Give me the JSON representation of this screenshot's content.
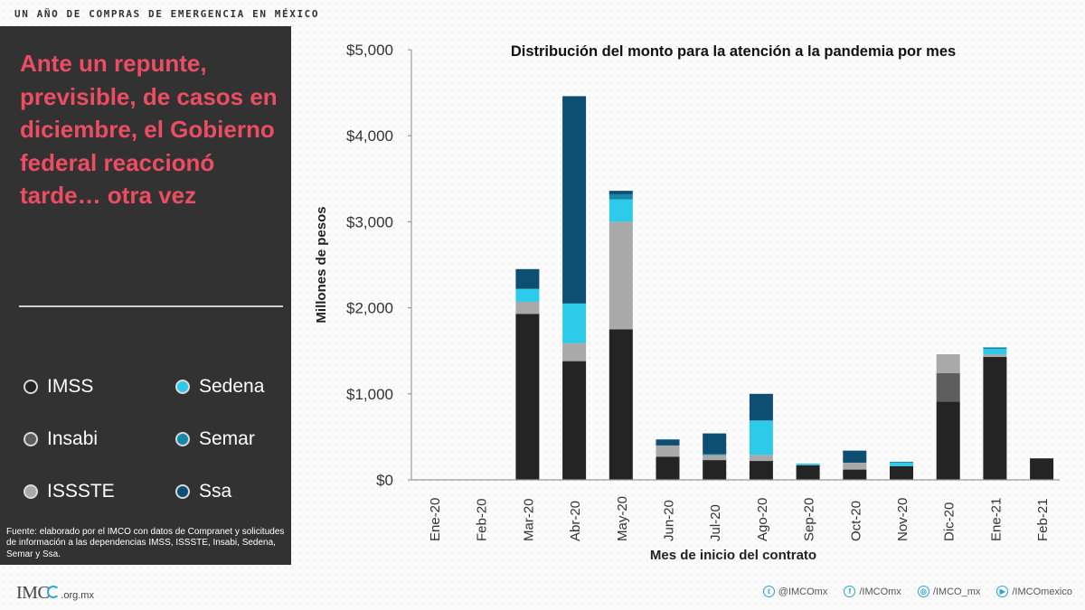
{
  "header": {
    "kicker": "UN AÑO DE COMPRAS DE EMERGENCIA EN MÉXICO"
  },
  "panel": {
    "headline": "Ante un repunte, previsible, de casos en diciembre, el Gobierno federal reaccionó tarde… otra vez",
    "headline_color": "#ec4d63",
    "legend": [
      {
        "label": "IMSS",
        "color": "#242424"
      },
      {
        "label": "Sedena",
        "color": "#2dcbea"
      },
      {
        "label": "Insabi",
        "color": "#5e5e5e"
      },
      {
        "label": "Semar",
        "color": "#1587a9"
      },
      {
        "label": "ISSSTE",
        "color": "#a9a9a9"
      },
      {
        "label": "Ssa",
        "color": "#0d4e72"
      }
    ],
    "source": "Fuente: elaborado por el IMCO con datos de Compranet y solicitudes de información a las dependencias IMSS, ISSSTE, Insabi, Sedena, Semar y Ssa."
  },
  "footer": {
    "logo_text": "IMC",
    "logo_domain": ".org.mx",
    "social": [
      {
        "icon": "twitter-icon",
        "glyph": "t",
        "label": "@IMCOmx"
      },
      {
        "icon": "facebook-icon",
        "glyph": "f",
        "label": "/IMCOmx"
      },
      {
        "icon": "instagram-icon",
        "glyph": "◎",
        "label": "/IMCO_mx"
      },
      {
        "icon": "youtube-icon",
        "glyph": "▶",
        "label": "/IMCOmexico"
      }
    ]
  },
  "chart_data": {
    "type": "bar",
    "stacked": true,
    "title": "Distribución del monto para la atención a la pandemia por mes",
    "xlabel": "Mes de inicio del contrato",
    "ylabel": "Millones de pesos",
    "ylim": [
      0,
      5000
    ],
    "yticks": [
      0,
      1000,
      2000,
      3000,
      4000,
      5000
    ],
    "ytick_labels": [
      "$0",
      "$1,000",
      "$2,000",
      "$3,000",
      "$4,000",
      "$5,000"
    ],
    "grid": false,
    "categories": [
      "Ene-20",
      "Feb-20",
      "Mar-20",
      "Abr-20",
      "May-20",
      "Jun-20",
      "Jul-20",
      "Ago-20",
      "Sep-20",
      "Oct-20",
      "Nov-20",
      "Dic-20",
      "Ene-21",
      "Feb-21"
    ],
    "series": [
      {
        "name": "IMSS",
        "color": "#242424",
        "values": [
          0,
          0,
          1930,
          1380,
          1750,
          270,
          230,
          220,
          170,
          120,
          160,
          910,
          1430,
          250
        ]
      },
      {
        "name": "Insabi",
        "color": "#5e5e5e",
        "values": [
          0,
          0,
          0,
          0,
          0,
          0,
          0,
          0,
          0,
          0,
          0,
          330,
          0,
          0
        ]
      },
      {
        "name": "ISSSTE",
        "color": "#a9a9a9",
        "values": [
          0,
          0,
          140,
          210,
          1250,
          130,
          60,
          70,
          0,
          80,
          0,
          220,
          30,
          0
        ]
      },
      {
        "name": "Sedena",
        "color": "#2dcbea",
        "values": [
          0,
          0,
          150,
          460,
          260,
          0,
          0,
          400,
          20,
          0,
          40,
          0,
          60,
          0
        ]
      },
      {
        "name": "Semar",
        "color": "#1587a9",
        "values": [
          0,
          0,
          0,
          0,
          60,
          0,
          10,
          0,
          0,
          0,
          10,
          0,
          20,
          0
        ]
      },
      {
        "name": "Ssa",
        "color": "#0d4e72",
        "values": [
          0,
          0,
          230,
          2410,
          40,
          70,
          240,
          310,
          0,
          140,
          0,
          0,
          0,
          0
        ]
      }
    ]
  }
}
